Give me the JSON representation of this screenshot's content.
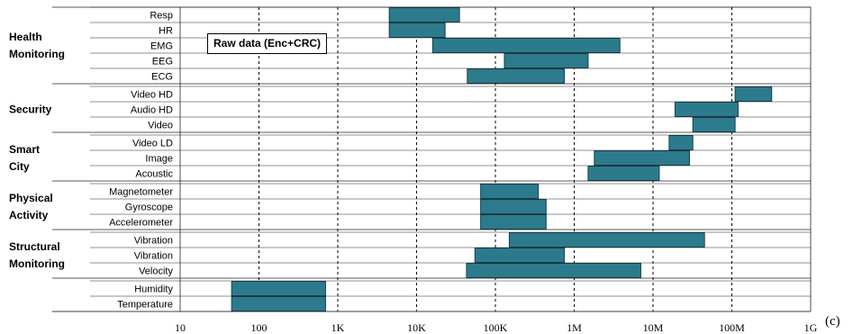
{
  "chart_data": {
    "type": "bar",
    "subtype": "floating-range-horizontal",
    "annotation": "Raw data (Enc+CRC)",
    "panel_label": "(c)",
    "x_scale": "log",
    "xlim": [
      10,
      1000000000
    ],
    "x_ticks": [
      {
        "value": 10,
        "label": "10"
      },
      {
        "value": 100,
        "label": "100"
      },
      {
        "value": 1000,
        "label": "1K"
      },
      {
        "value": 10000,
        "label": "10K"
      },
      {
        "value": 100000,
        "label": "100K"
      },
      {
        "value": 1000000,
        "label": "1M"
      },
      {
        "value": 10000000,
        "label": "10M"
      },
      {
        "value": 100000000,
        "label": "100M"
      },
      {
        "value": 1000000000,
        "label": "1G"
      }
    ],
    "grid": "vertical dashed at each decade",
    "bar_color": "#2b7b8c",
    "groups": [
      {
        "name": "Health Monitoring",
        "name_lines": [
          "Health",
          "Monitoring"
        ],
        "rows": [
          {
            "label": "Resp",
            "range": [
              4500,
              35000
            ]
          },
          {
            "label": "HR",
            "range": [
              4500,
              23000
            ]
          },
          {
            "label": "EMG",
            "range": [
              16000,
              3800000
            ]
          },
          {
            "label": "EEG",
            "range": [
              130000,
              1500000
            ]
          },
          {
            "label": "ECG",
            "range": [
              44000,
              750000
            ]
          }
        ]
      },
      {
        "name": "Security",
        "name_lines": [
          "Security"
        ],
        "rows": [
          {
            "label": "Video HD",
            "range": [
              110000000,
              320000000
            ]
          },
          {
            "label": "Audio HD",
            "range": [
              19000000,
              120000000
            ]
          },
          {
            "label": "Video",
            "range": [
              32000000,
              110000000
            ]
          }
        ]
      },
      {
        "name": "Smart City",
        "name_lines": [
          "Smart",
          "City"
        ],
        "rows": [
          {
            "label": "Video LD",
            "range": [
              16000000,
              32000000
            ]
          },
          {
            "label": "Image",
            "range": [
              1800000,
              29000000
            ]
          },
          {
            "label": "Acoustic",
            "range": [
              1500000,
              12000000
            ]
          }
        ]
      },
      {
        "name": "Physical Activity",
        "name_lines": [
          "Physical",
          "Activity"
        ],
        "rows": [
          {
            "label": "Magnetometer",
            "range": [
              65000,
              350000
            ]
          },
          {
            "label": "Gyroscope",
            "range": [
              65000,
              440000
            ]
          },
          {
            "label": "Accelerometer",
            "range": [
              65000,
              440000
            ]
          }
        ]
      },
      {
        "name": "Structural Monitoring",
        "name_lines": [
          "Structural",
          "Monitoring"
        ],
        "rows": [
          {
            "label": "Vibration",
            "range": [
              150000,
              45000000
            ]
          },
          {
            "label": "Vibration",
            "range": [
              55000,
              750000
            ]
          },
          {
            "label": "Velocity",
            "range": [
              43000,
              7000000
            ]
          }
        ]
      },
      {
        "name": "",
        "name_lines": [],
        "rows": [
          {
            "label": "Humidity",
            "range": [
              45,
              700
            ]
          },
          {
            "label": "Temperature",
            "range": [
              45,
              700
            ]
          }
        ]
      }
    ]
  }
}
